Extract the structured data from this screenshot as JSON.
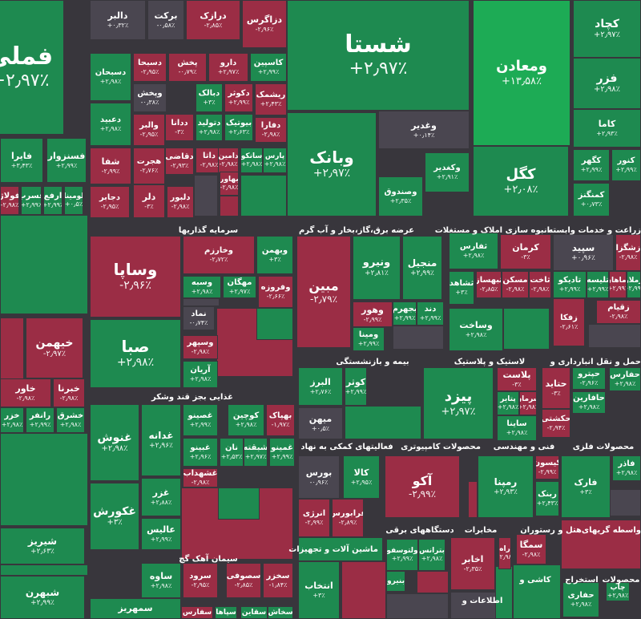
{
  "colors": {
    "up": "#1e8a50",
    "up_bright": "#1dab55",
    "down": "#9b2d45",
    "neutral": "#4a4650",
    "background": "#38363c"
  },
  "sectors": [
    "سرمایه گذاریها",
    "عرضه برق،گاز،بخار و آب گرم",
    "انبوه سازی املاک و مستغلات",
    "زراعت و خدمات وابسته",
    "بیمه و بازنشستگی",
    "لاستیک و پلاستیک",
    "حمل و نقل انبارداری و",
    "غذایی بجز قند وشکر",
    "فعالیتهای کمکی به نهاد",
    "محصولات کامپیوتری",
    "فنی و مهندسی",
    "محصولات فلزی",
    "سیمان آهک گچ",
    "دستگاههای برقی",
    "مخابرات",
    "هتل و رستوران",
    "واسطه گریهای",
    "ماشین آلات و تجهیزات",
    "کاشی و",
    "استخراج",
    "محصولات",
    "اطلاعات و"
  ],
  "tiles": [
    {
      "n": "فملی",
      "c": "+۲٫۹۷٪"
    },
    {
      "n": "دالبر",
      "c": "+۰٫۳۲٪"
    },
    {
      "n": "برکت",
      "c": "-۰٫۵۸٪"
    },
    {
      "n": "درازک",
      "c": "-۲٫۸۵٪"
    },
    {
      "n": "دزاگرس",
      "c": "-۲٫۹۶٪"
    },
    {
      "n": "شستا",
      "c": "+۲٫۹۷٪"
    },
    {
      "n": "ومعادن",
      "c": "+۱۳٫۵۸٪"
    },
    {
      "n": "کچاد",
      "c": "+۲٫۹۷٪"
    },
    {
      "n": "فزر",
      "c": "+۲٫۹۸٪"
    },
    {
      "n": "کاما",
      "c": "+۲٫۹۳٪"
    },
    {
      "n": "دسبحان",
      "c": "+۲٫۹۸٪"
    },
    {
      "n": "دسبحا",
      "c": "-۲٫۹۵٪"
    },
    {
      "n": "پخش",
      "c": "-۰٫۷۹٪"
    },
    {
      "n": "دارو",
      "c": "+۲٫۹۷٪"
    },
    {
      "n": "کاسپین",
      "c": "+۲٫۹۹٪"
    },
    {
      "n": "وپخش",
      "c": "-۰٫۳۸٪"
    },
    {
      "n": "دبالک",
      "c": "+۳٪"
    },
    {
      "n": "دکوثر",
      "c": "+۲٫۹۹٪"
    },
    {
      "n": "ریشمک",
      "c": "+۲٫۴۳٪"
    },
    {
      "n": "دعبید",
      "c": "+۲٫۹۸٪"
    },
    {
      "n": "والبر",
      "c": "-۲٫۹۵٪"
    },
    {
      "n": "ددانا",
      "c": "-۳٪"
    },
    {
      "n": "دتولید",
      "c": "+۲٫۹۸٪"
    },
    {
      "n": "بیوتیک",
      "c": "+۲٫۶۳٪"
    },
    {
      "n": "دفارا",
      "c": "-۲٫۹۸٪"
    },
    {
      "n": "وغدیر",
      "c": "+۰٫۱۴٪"
    },
    {
      "n": "فایرا",
      "c": "+۳٫۴۳٪"
    },
    {
      "n": "فسنزوار",
      "c": "+۲٫۹۹٪"
    },
    {
      "n": "شفا",
      "c": "-۲٫۹۹٪"
    },
    {
      "n": "هجرت",
      "c": "-۲٫۷۶٪"
    },
    {
      "n": "دقاضی",
      "c": "-۲٫۹۳٪"
    },
    {
      "n": "داتا",
      "c": "-۲٫۹۸٪"
    },
    {
      "n": "دامین",
      "c": "-۲٫۹۸٪"
    },
    {
      "n": "سانکو",
      "c": "+۲٫۹۸٪"
    },
    {
      "n": "پارس",
      "c": "+۲٫۹۸٪"
    },
    {
      "n": "وبانک",
      "c": "+۲٫۹۷٪"
    },
    {
      "n": "وکغدیر",
      "c": "+۲٫۹۱٪"
    },
    {
      "n": "وصندوق",
      "c": "+۲٫۳۵٪"
    },
    {
      "n": "کگل",
      "c": "+۲٫۰۸٪"
    },
    {
      "n": "کگهر",
      "c": "+۲٫۹۹٪"
    },
    {
      "n": "کنور",
      "c": "+۲٫۹۹٪"
    },
    {
      "n": "کمنگنز",
      "c": "+۰٫۷۳٪"
    },
    {
      "n": "فولاژ",
      "c": "-۲٫۹۸٪"
    },
    {
      "n": "فسرب",
      "c": "+۲٫۹۹٪"
    },
    {
      "n": "ارفع",
      "c": "+۲٫۹۹٪"
    },
    {
      "n": "لومینا",
      "c": "+۰٫۵٪"
    },
    {
      "n": "دجابر",
      "c": "-۲٫۹۵٪"
    },
    {
      "n": "دلر",
      "c": "-۳٪"
    },
    {
      "n": "دلبور",
      "c": "-۲٫۹۸٪"
    },
    {
      "n": "بهاور",
      "c": "-۲٫۹۸٪"
    },
    {
      "n": "وساپا",
      "c": "-۲٫۹۶٪"
    },
    {
      "n": "وخارزم",
      "c": "-۲٫۷۲٪"
    },
    {
      "n": "وبهمن",
      "c": "+۳٪"
    },
    {
      "n": "وسبه",
      "c": "+۲٫۹۸٪"
    },
    {
      "n": "مهگان",
      "c": "+۲٫۹۷٪"
    },
    {
      "n": "وفروزه",
      "c": "-۲٫۶۶٪"
    },
    {
      "n": "نماد",
      "c": "-۰٫۷۴٪"
    },
    {
      "n": "وسپهر",
      "c": "-۲٫۹۸٪"
    },
    {
      "n": "آریان",
      "c": "+۲٫۹۸٪"
    },
    {
      "n": "صبا",
      "c": "+۲٫۹۸٪"
    },
    {
      "n": "مبین",
      "c": "-۲٫۷۹٪"
    },
    {
      "n": "ونیرو",
      "c": "+۲٫۸۱٪"
    },
    {
      "n": "منجیل",
      "c": "+۲٫۹۹٪"
    },
    {
      "n": "وهور",
      "c": "-۲٫۹۹٪"
    },
    {
      "n": "بجهرم",
      "c": "+۲٫۹۹٪"
    },
    {
      "n": "دند",
      "c": "+۲٫۹۹٪"
    },
    {
      "n": "ومینا",
      "c": "+۲٫۹۹٪"
    },
    {
      "n": "ثفارس",
      "c": "+۲٫۹۸٪"
    },
    {
      "n": "کرمان",
      "c": "-۳٪"
    },
    {
      "n": "ثشاهد",
      "c": "+۳٪"
    },
    {
      "n": "ثبهساز",
      "c": "-۲٫۸۵٪"
    },
    {
      "n": "مسکن",
      "c": "-۲٫۹۸٪"
    },
    {
      "n": "ثاخت",
      "c": "-۲٫۹۸٪"
    },
    {
      "n": "وساخت",
      "c": "+۲٫۹۸٪"
    },
    {
      "n": "سپید",
      "c": "+۰٫۹۶٪"
    },
    {
      "n": "زشگزا",
      "c": "-۲٫۹۸٪"
    },
    {
      "n": "تادیکو",
      "c": "+۲٫۹۹٪"
    },
    {
      "n": "تلیسه",
      "c": "+۲٫۹۹٪"
    },
    {
      "n": "زماهان",
      "c": "+۲٫۹۹٪"
    },
    {
      "n": "زملار",
      "c": "+۲٫۹۹٪"
    },
    {
      "n": "زقیام",
      "c": "-۲٫۹۸٪"
    },
    {
      "n": "زفکا",
      "c": "-۲٫۶۱٪"
    },
    {
      "n": "خیهمن",
      "c": "-۲٫۹۷٪"
    },
    {
      "n": "خاور",
      "c": "-۲٫۹۸٪"
    },
    {
      "n": "خبرنا",
      "c": "-۲٫۹۸٪"
    },
    {
      "n": "خزر",
      "c": "+۲٫۹۸٪"
    },
    {
      "n": "رانفر",
      "c": "+۲٫۹۹٪"
    },
    {
      "n": "خشرق",
      "c": "+۲٫۹۸٪"
    },
    {
      "n": "البرز",
      "c": "+۲٫۷۶٪"
    },
    {
      "n": "کوثر",
      "c": "+۲٫۹۹٪"
    },
    {
      "n": "میهن",
      "c": "+۰٫۵٪"
    },
    {
      "n": "پیزد",
      "c": "+۲٫۹۷٪"
    },
    {
      "n": "پلاست",
      "c": "-۳٪"
    },
    {
      "n": "شرمان",
      "c": "+۲٫۹۸٪"
    },
    {
      "n": "پتایر",
      "c": "+۲٫۹۸٪"
    },
    {
      "n": "ساینا",
      "c": "+۲٫۹۸٪"
    },
    {
      "n": "حتاید",
      "c": "-۳٪"
    },
    {
      "n": "حپترو",
      "c": "-۲٫۹۶٪"
    },
    {
      "n": "حفارس",
      "c": "+۲٫۹۸٪"
    },
    {
      "n": "حافارین",
      "c": "+۲٫۹۸٪"
    },
    {
      "n": "حکشتی",
      "c": "-۲٫۹۴٪"
    },
    {
      "n": "غنوش",
      "c": "+۲٫۹۸٪"
    },
    {
      "n": "غدانه",
      "c": "+۲٫۹۶٪"
    },
    {
      "n": "غصینو",
      "c": "+۲٫۹۹٪"
    },
    {
      "n": "کوچین",
      "c": "+۲٫۹۸٪"
    },
    {
      "n": "بهپاک",
      "c": "-۱٫۹۷٪"
    },
    {
      "n": "غبینو",
      "c": "+۲٫۹۶٪"
    },
    {
      "n": "نان",
      "c": "+۲٫۵۳٪"
    },
    {
      "n": "شبقته",
      "c": "+۲٫۹۷٪"
    },
    {
      "n": "غمینو",
      "c": "+۲٫۹۹٪"
    },
    {
      "n": "غشهداب",
      "c": "-۲٫۹۸٪"
    },
    {
      "n": "غکورش",
      "c": "+۳٪"
    },
    {
      "n": "غزر",
      "c": "+۲٫۸۸٪"
    },
    {
      "n": "عالیس",
      "c": "+۲٫۹۹٪"
    },
    {
      "n": "بورس",
      "c": "-۰٫۹۶٪"
    },
    {
      "n": "کالا",
      "c": "+۲٫۹۵٪"
    },
    {
      "n": "آکو",
      "c": "-۲٫۹۹٪"
    },
    {
      "n": "رمپنا",
      "c": "+۲٫۹۳٪"
    },
    {
      "n": "کیسون",
      "c": "-۲٫۹۹٪"
    },
    {
      "n": "ربنک",
      "c": "+۲٫۴۳٪"
    },
    {
      "n": "فارک",
      "c": "+۳٪"
    },
    {
      "n": "فاذر",
      "c": "+۲٫۹۸٪"
    },
    {
      "n": "انرژی",
      "c": "-۲٫۹۹٪"
    },
    {
      "n": "فرابورس",
      "c": "-۲٫۸۹٪"
    },
    {
      "n": "شیریز",
      "c": "+۲٫۶۳٪"
    },
    {
      "n": "شبهرن",
      "c": "+۲٫۹۹٪"
    },
    {
      "n": "ساوه",
      "c": "+۲٫۹۸٪"
    },
    {
      "n": "سرود",
      "c": "-۲٫۹۵٪"
    },
    {
      "n": "سصوفی",
      "c": "-۲٫۸۵٪"
    },
    {
      "n": "سخزر",
      "c": "-۱٫۸۴٪"
    },
    {
      "n": "سمهریز",
      "c": ""
    },
    {
      "n": "سفارس",
      "c": ""
    },
    {
      "n": "سپاها",
      "c": ""
    },
    {
      "n": "سقاین",
      "c": ""
    },
    {
      "n": "سخاش",
      "c": ""
    },
    {
      "n": "ولتوسفو",
      "c": "+۲٫۹۹٪"
    },
    {
      "n": "بترانس",
      "c": "+۲٫۹۸٪"
    },
    {
      "n": "اخابر",
      "c": "-۲٫۳۵٪"
    },
    {
      "n": "راه",
      "c": "+۲٫۹۸٪"
    },
    {
      "n": "سمگا",
      "c": "-۲٫۹۸٪"
    },
    {
      "n": "انتخاب",
      "c": "+۳٪"
    },
    {
      "n": "حفاری",
      "c": "+۲٫۹۸٪"
    },
    {
      "n": "چاپ",
      "c": "+۲٫۹۸٪"
    },
    {
      "n": "بنیرو",
      "c": ""
    }
  ]
}
